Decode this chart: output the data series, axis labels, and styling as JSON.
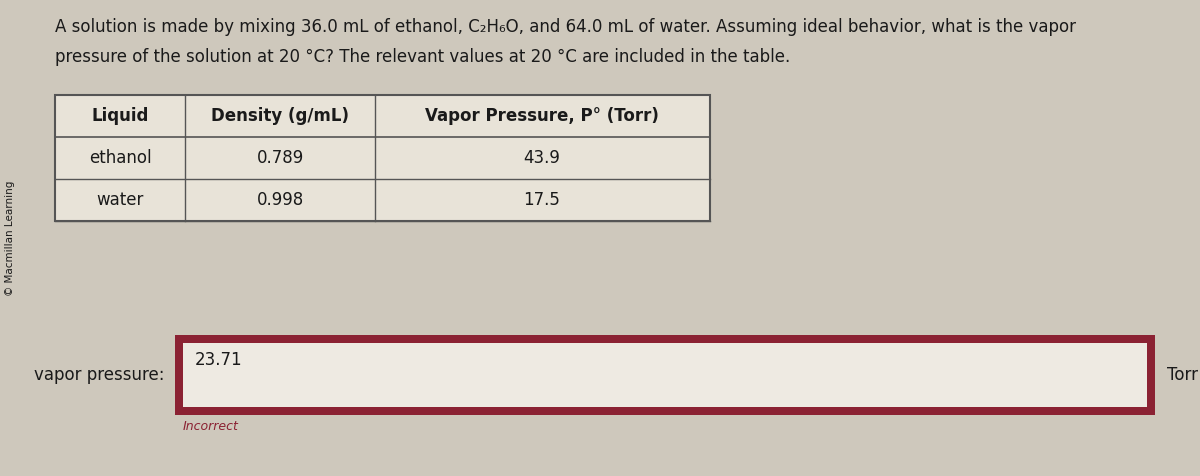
{
  "title_line1": "A solution is made by mixing 36.0 mL of ethanol, C₂H₆O, and 64.0 mL of water. Assuming ideal behavior, what is the vapor",
  "title_line2": "pressure of the solution at 20 °C? The relevant values at 20 °C are included in the table.",
  "copyright": "© Macmillan Learning",
  "table_headers": [
    "Liquid",
    "Density (g/mL)",
    "Vapor Pressure, P° (Torr)"
  ],
  "table_rows": [
    [
      "ethanol",
      "0.789",
      "43.9"
    ],
    [
      "water",
      "0.998",
      "17.5"
    ]
  ],
  "input_label": "vapor pressure:",
  "input_value": "23.71",
  "input_unit": "Torr",
  "incorrect_text": "Incorrect",
  "bg_color": "#cec8bc",
  "table_bg_header": "#e8e3d8",
  "table_bg_row": "#e8e3d8",
  "outer_box_color": "#8b2233",
  "inner_box_color": "#dedad2",
  "inner_box_lighter": "#eeeae2",
  "incorrect_color": "#8b2233",
  "text_color": "#1a1a1a",
  "table_line_color": "#555555",
  "header_font_size": 12,
  "body_font_size": 12,
  "title_font_size": 12
}
